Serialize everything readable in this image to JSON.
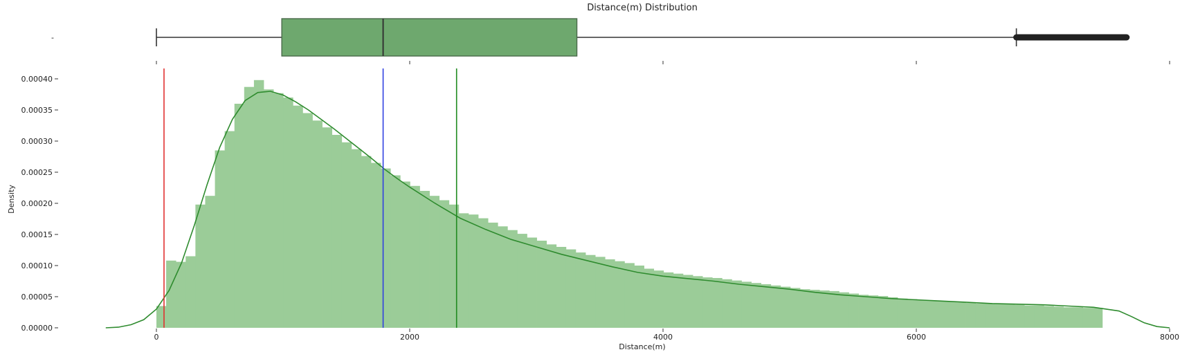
{
  "chart_data": [
    {
      "type": "box",
      "title": "Distance(m) Distribution",
      "ytick": "-",
      "xlim": [
        -400,
        8080
      ],
      "whisker_low": 0,
      "q1": 990,
      "median": 1790,
      "q3": 3320,
      "whisker_high": 6790,
      "outliers_from": 6790,
      "outliers_to": 7660,
      "color": "#6ea86e",
      "xticks": [
        0,
        2000,
        4000,
        6000,
        8000
      ]
    },
    {
      "type": "histogram",
      "xlabel": "Distance(m)",
      "ylabel": "Density",
      "xlim": [
        -400,
        8080
      ],
      "ylim": [
        0,
        0.00042
      ],
      "xticks": [
        0,
        2000,
        4000,
        6000,
        8000
      ],
      "xtick_labels": [
        "0",
        "2000",
        "4000",
        "6000",
        "8000"
      ],
      "yticks": [
        0,
        5e-05,
        0.0001,
        0.00015,
        0.0002,
        0.00025,
        0.0003,
        0.00035,
        0.0004
      ],
      "ytick_labels": [
        "0.00000",
        "0.00005",
        "0.00010",
        "0.00015",
        "0.00020",
        "0.00025",
        "0.00030",
        "0.00035",
        "0.00040"
      ],
      "bin_start": 0,
      "bin_width": 77,
      "bin_values": [
        3.5e-05,
        0.000108,
        0.000106,
        0.000115,
        0.000198,
        0.000212,
        0.000285,
        0.000316,
        0.00036,
        0.000387,
        0.000398,
        0.000383,
        0.000377,
        0.00037,
        0.000357,
        0.000345,
        0.000333,
        0.000322,
        0.00031,
        0.000298,
        0.000287,
        0.000276,
        0.000265,
        0.000256,
        0.000245,
        0.000235,
        0.000228,
        0.00022,
        0.000212,
        0.000205,
        0.000198,
        0.000184,
        0.000182,
        0.000176,
        0.000169,
        0.000163,
        0.000157,
        0.000151,
        0.000145,
        0.00014,
        0.000134,
        0.00013,
        0.000126,
        0.000121,
        0.000117,
        0.000114,
        0.00011,
        0.000107,
        0.000104,
        0.0001,
        9.5e-05,
        9.2e-05,
        8.9e-05,
        8.7e-05,
        8.5e-05,
        8.3e-05,
        8.1e-05,
        8e-05,
        7.8e-05,
        7.6e-05,
        7.4e-05,
        7.2e-05,
        7e-05,
        6.8e-05,
        6.6e-05,
        6.4e-05,
        6.2e-05,
        6.1e-05,
        6e-05,
        5.9e-05,
        5.7e-05,
        5.5e-05,
        5.3e-05,
        5.2e-05,
        5.1e-05,
        4.9e-05,
        4.7e-05,
        4.6e-05,
        4.5e-05,
        4.4e-05,
        4.3e-05,
        4.2e-05,
        4.1e-05,
        4e-05,
        3.9e-05,
        3.9e-05,
        3.8e-05,
        3.8e-05,
        3.7e-05,
        3.6e-05,
        3.6e-05,
        3.5e-05,
        3.4e-05,
        3.3e-05,
        3.3e-05,
        3.2e-05,
        3.2e-05
      ],
      "bar_color": "#9bcc98",
      "kde": {
        "color": "#2e8b2e",
        "points": [
          [
            -400,
            0.0
          ],
          [
            -300,
            1e-06
          ],
          [
            -200,
            5e-06
          ],
          [
            -100,
            1.3e-05
          ],
          [
            0,
            3e-05
          ],
          [
            100,
            6e-05
          ],
          [
            200,
            0.000105
          ],
          [
            300,
            0.000165
          ],
          [
            400,
            0.00023
          ],
          [
            500,
            0.00029
          ],
          [
            600,
            0.000335
          ],
          [
            700,
            0.000365
          ],
          [
            800,
            0.000378
          ],
          [
            900,
            0.00038
          ],
          [
            1000,
            0.000374
          ],
          [
            1100,
            0.000363
          ],
          [
            1200,
            0.00035
          ],
          [
            1300,
            0.000335
          ],
          [
            1400,
            0.00032
          ],
          [
            1500,
            0.000304
          ],
          [
            1600,
            0.000288
          ],
          [
            1700,
            0.000272
          ],
          [
            1800,
            0.000255
          ],
          [
            1900,
            0.00024
          ],
          [
            2000,
            0.000226
          ],
          [
            2200,
            0.0002
          ],
          [
            2400,
            0.000176
          ],
          [
            2600,
            0.000158
          ],
          [
            2800,
            0.000142
          ],
          [
            3000,
            0.00013
          ],
          [
            3200,
            0.000118
          ],
          [
            3400,
            0.000108
          ],
          [
            3600,
            9.8e-05
          ],
          [
            3800,
            8.9e-05
          ],
          [
            4000,
            8.3e-05
          ],
          [
            4200,
            7.9e-05
          ],
          [
            4400,
            7.5e-05
          ],
          [
            4600,
            7e-05
          ],
          [
            4800,
            6.6e-05
          ],
          [
            5000,
            6.2e-05
          ],
          [
            5200,
            5.7e-05
          ],
          [
            5400,
            5.3e-05
          ],
          [
            5600,
            5e-05
          ],
          [
            5800,
            4.7e-05
          ],
          [
            6000,
            4.5e-05
          ],
          [
            6200,
            4.3e-05
          ],
          [
            6400,
            4.1e-05
          ],
          [
            6600,
            3.9e-05
          ],
          [
            6800,
            3.8e-05
          ],
          [
            7000,
            3.7e-05
          ],
          [
            7200,
            3.5e-05
          ],
          [
            7400,
            3.3e-05
          ],
          [
            7600,
            2.7e-05
          ],
          [
            7700,
            1.8e-05
          ],
          [
            7800,
            8e-06
          ],
          [
            7900,
            2e-06
          ],
          [
            8000,
            0.0
          ]
        ]
      },
      "reference_lines": [
        {
          "x": 60,
          "color": "#e03030"
        },
        {
          "x": 1790,
          "color": "#2f3fe0"
        },
        {
          "x": 2370,
          "color": "#1f8a1f"
        }
      ]
    }
  ]
}
